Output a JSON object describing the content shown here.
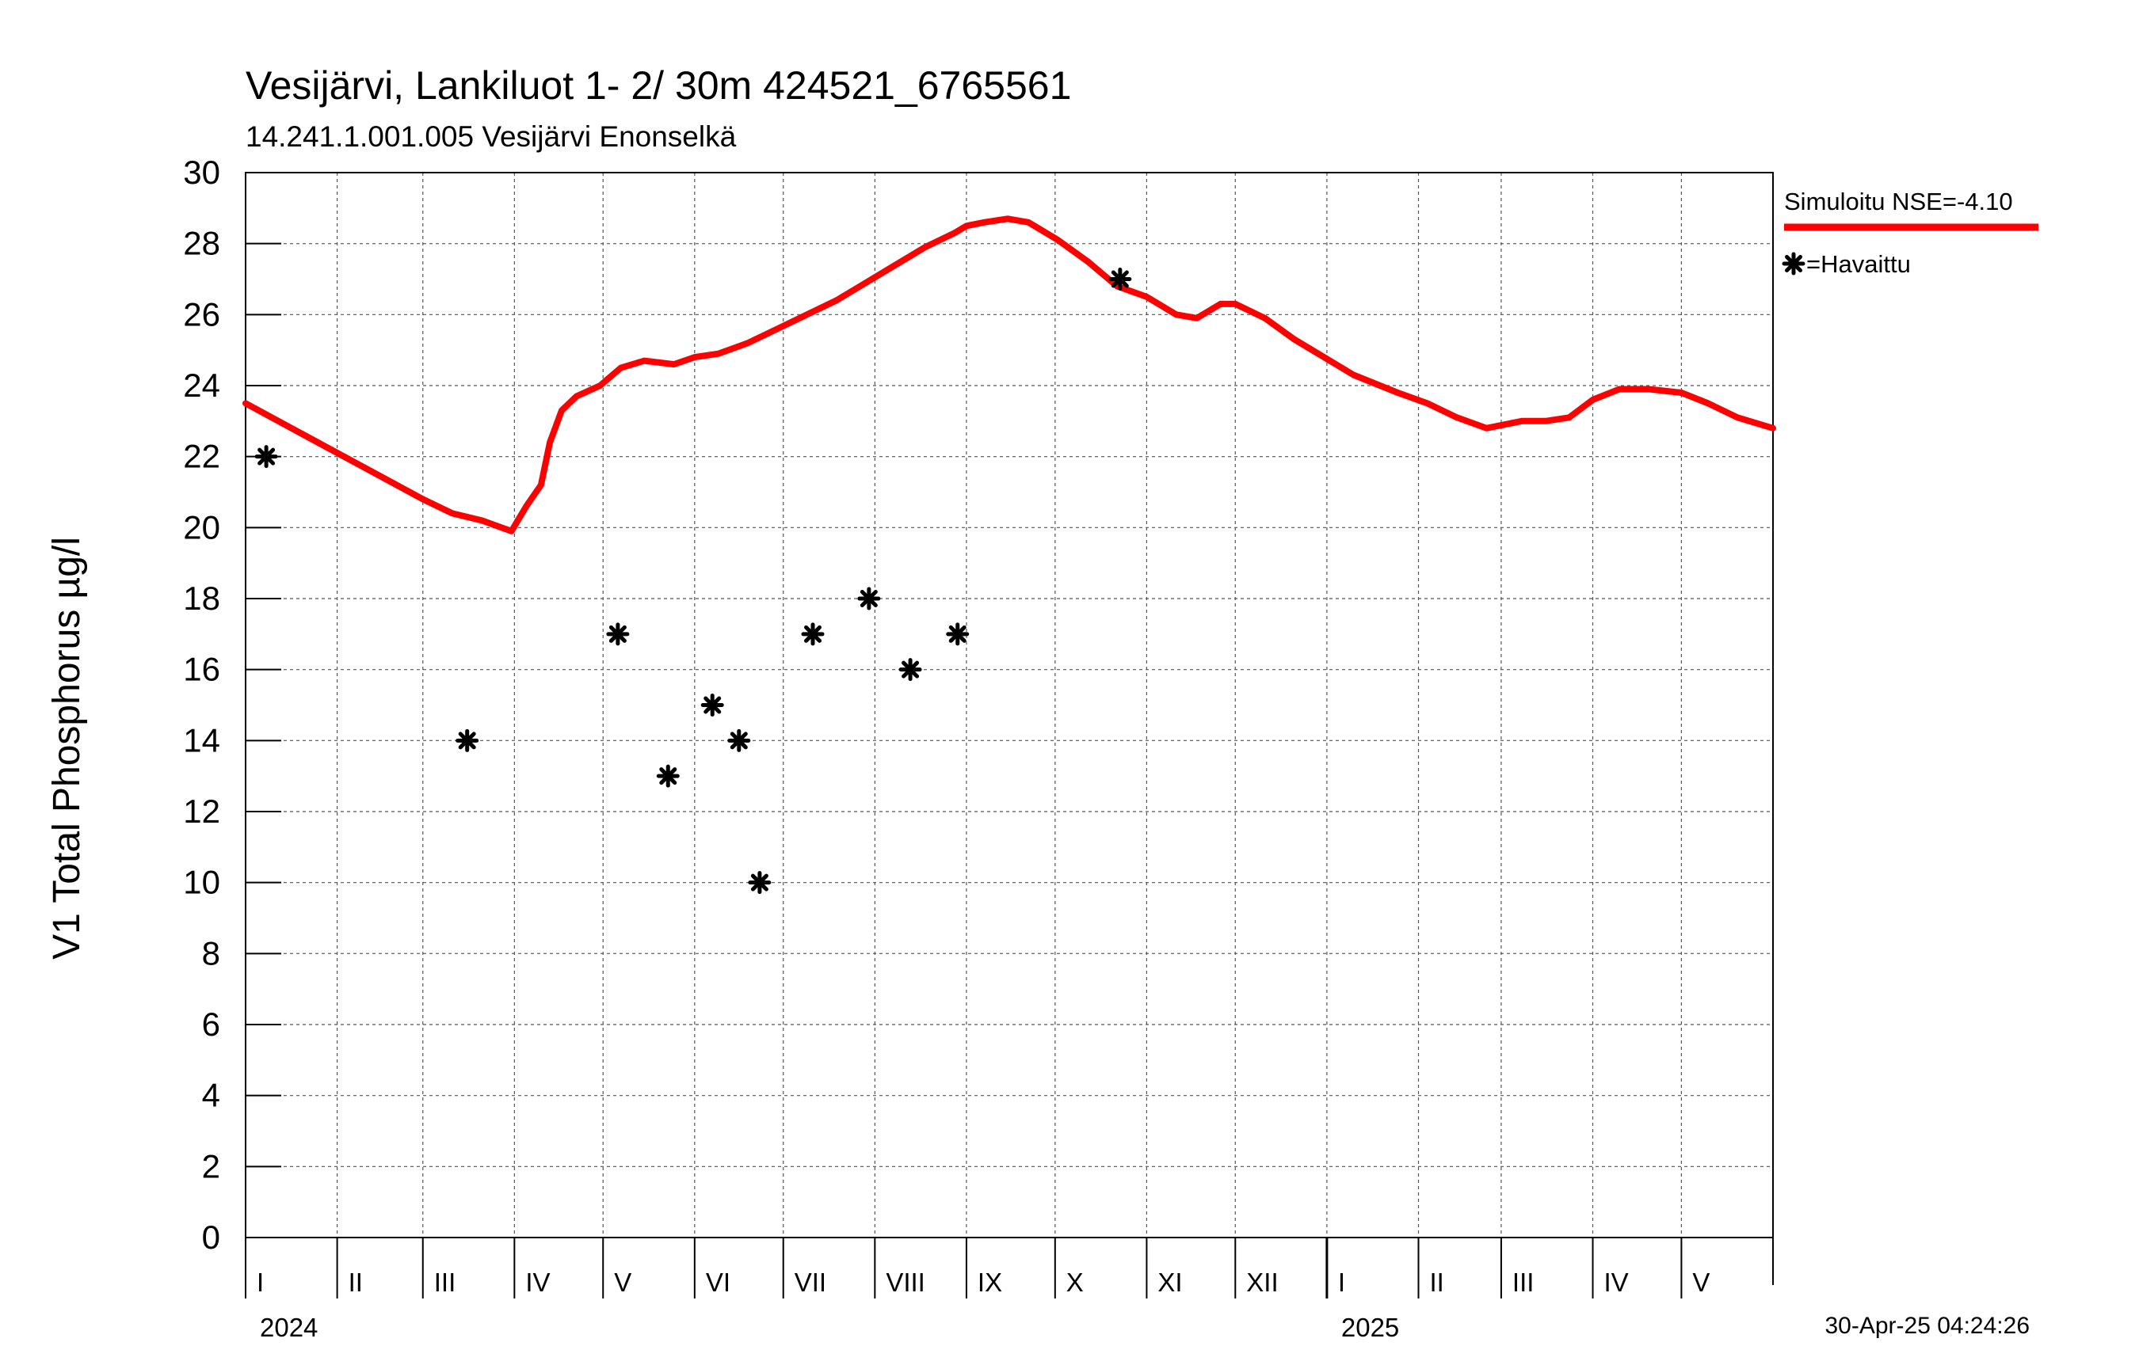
{
  "chart_data": {
    "type": "line",
    "title": "Vesijärvi, Lankiluot 1- 2/ 30m  424521_6765561",
    "subtitle": "14.241.1.001.005 Vesijärvi Enonselkä",
    "ylabel": "V1 Total Phosphorus µg/l",
    "xlabel": "",
    "ylim": [
      0,
      30
    ],
    "yticks": [
      0,
      2,
      4,
      6,
      8,
      10,
      12,
      14,
      16,
      18,
      20,
      22,
      24,
      26,
      28,
      30
    ],
    "xlim_days": [
      0,
      517
    ],
    "grid": true,
    "months": [
      {
        "label": "I",
        "start": 0
      },
      {
        "label": "II",
        "start": 31
      },
      {
        "label": "III",
        "start": 60
      },
      {
        "label": "IV",
        "start": 91
      },
      {
        "label": "V",
        "start": 121
      },
      {
        "label": "VI",
        "start": 152
      },
      {
        "label": "VII",
        "start": 182
      },
      {
        "label": "VIII",
        "start": 213
      },
      {
        "label": "IX",
        "start": 244
      },
      {
        "label": "X",
        "start": 274
      },
      {
        "label": "XI",
        "start": 305
      },
      {
        "label": "XII",
        "start": 335
      },
      {
        "label": "I",
        "start": 366
      },
      {
        "label": "II",
        "start": 397
      },
      {
        "label": "III",
        "start": 425
      },
      {
        "label": "IV",
        "start": 456
      },
      {
        "label": "V",
        "start": 486
      }
    ],
    "years": [
      {
        "label": "2024",
        "start": 0
      },
      {
        "label": "2025",
        "start": 366
      }
    ],
    "series": [
      {
        "name": "Simuloitu NSE=-4.10",
        "color": "#ff0000",
        "style": "line",
        "x": [
          0,
          20,
          40,
          60,
          70,
          80,
          90,
          95,
          100,
          103,
          107,
          112,
          120,
          127,
          135,
          145,
          152,
          160,
          170,
          180,
          190,
          200,
          210,
          220,
          230,
          240,
          244,
          250,
          258,
          265,
          275,
          285,
          295,
          305,
          315,
          322,
          330,
          335,
          345,
          355,
          365,
          375,
          390,
          400,
          410,
          420,
          426,
          432,
          440,
          448,
          456,
          465,
          475,
          486,
          495,
          505,
          517
        ],
        "values": [
          23.5,
          22.6,
          21.7,
          20.8,
          20.4,
          20.2,
          19.9,
          20.6,
          21.2,
          22.4,
          23.3,
          23.7,
          24.0,
          24.5,
          24.7,
          24.6,
          24.8,
          24.9,
          25.2,
          25.6,
          26.0,
          26.4,
          26.9,
          27.4,
          27.9,
          28.3,
          28.5,
          28.6,
          28.7,
          28.6,
          28.1,
          27.5,
          26.8,
          26.5,
          26.0,
          25.9,
          26.3,
          26.3,
          25.9,
          25.3,
          24.8,
          24.3,
          23.8,
          23.5,
          23.1,
          22.8,
          22.9,
          23.0,
          23.0,
          23.1,
          23.6,
          23.9,
          23.9,
          23.8,
          23.5,
          23.1,
          22.8
        ]
      },
      {
        "name": "=Havaittu",
        "color": "#000000",
        "style": "markers",
        "x": [
          7,
          75,
          126,
          143,
          158,
          167,
          174,
          192,
          211,
          225,
          241,
          296
        ],
        "values": [
          22,
          14,
          17,
          13,
          15,
          14,
          10,
          17,
          18,
          16,
          17,
          27
        ]
      }
    ]
  },
  "timestamp": "30-Apr-25 04:24:26",
  "colors": {
    "simulated": "#ff0000",
    "observed": "#000000",
    "grid": "#555555"
  }
}
